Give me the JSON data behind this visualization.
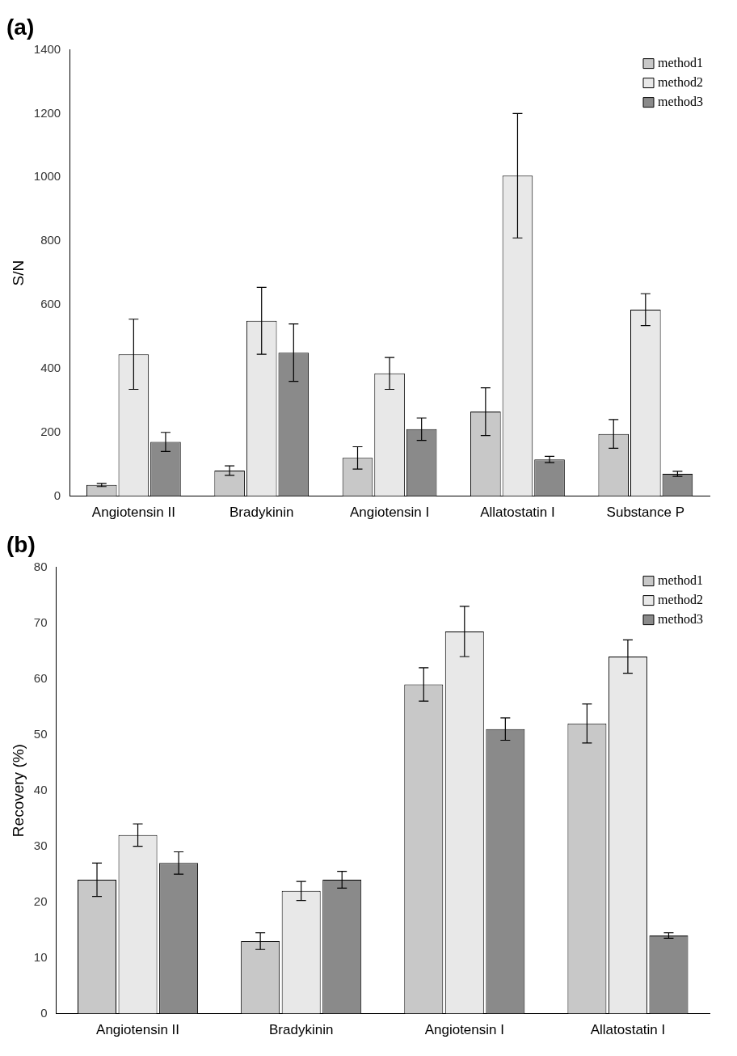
{
  "chart_data": [
    {
      "type": "bar",
      "title": "(a)",
      "ylabel": "S/N",
      "categories": [
        "Angiotensin II",
        "Bradykinin",
        "Angiotensin I",
        "Allatostatin I",
        "Substance P"
      ],
      "series": [
        {
          "name": "method1",
          "color": "#c8c8c8",
          "values": [
            35,
            80,
            120,
            265,
            195
          ],
          "errors": [
            5,
            15,
            35,
            75,
            45
          ]
        },
        {
          "name": "method2",
          "color": "#e8e8e8",
          "values": [
            445,
            550,
            385,
            1005,
            585
          ],
          "errors": [
            110,
            105,
            50,
            195,
            50
          ]
        },
        {
          "name": "method3",
          "color": "#8a8a8a",
          "values": [
            170,
            450,
            210,
            115,
            70
          ],
          "errors": [
            30,
            90,
            35,
            10,
            8
          ]
        }
      ],
      "ylim": [
        0,
        1400
      ],
      "yticks": [
        0,
        200,
        400,
        600,
        800,
        1000,
        1200,
        1400
      ],
      "grid": false,
      "legend": "top right"
    },
    {
      "type": "bar",
      "title": "(b)",
      "ylabel": "Recovery (%)",
      "categories": [
        "Angiotensin II",
        "Bradykinin",
        "Angiotensin I",
        "Allatostatin I"
      ],
      "series": [
        {
          "name": "method1",
          "color": "#c8c8c8",
          "values": [
            24,
            13,
            59,
            52
          ],
          "errors": [
            3,
            1.5,
            3,
            3.5
          ]
        },
        {
          "name": "method2",
          "color": "#e8e8e8",
          "values": [
            32,
            22,
            68.5,
            64
          ],
          "errors": [
            2,
            1.7,
            4.5,
            3
          ]
        },
        {
          "name": "method3",
          "color": "#8a8a8a",
          "values": [
            27,
            24,
            51,
            14
          ],
          "errors": [
            2,
            1.5,
            2,
            0.5
          ]
        }
      ],
      "ylim": [
        0,
        80
      ],
      "yticks": [
        0,
        10,
        20,
        30,
        40,
        50,
        60,
        70,
        80
      ],
      "grid": false,
      "legend": "top right"
    }
  ]
}
